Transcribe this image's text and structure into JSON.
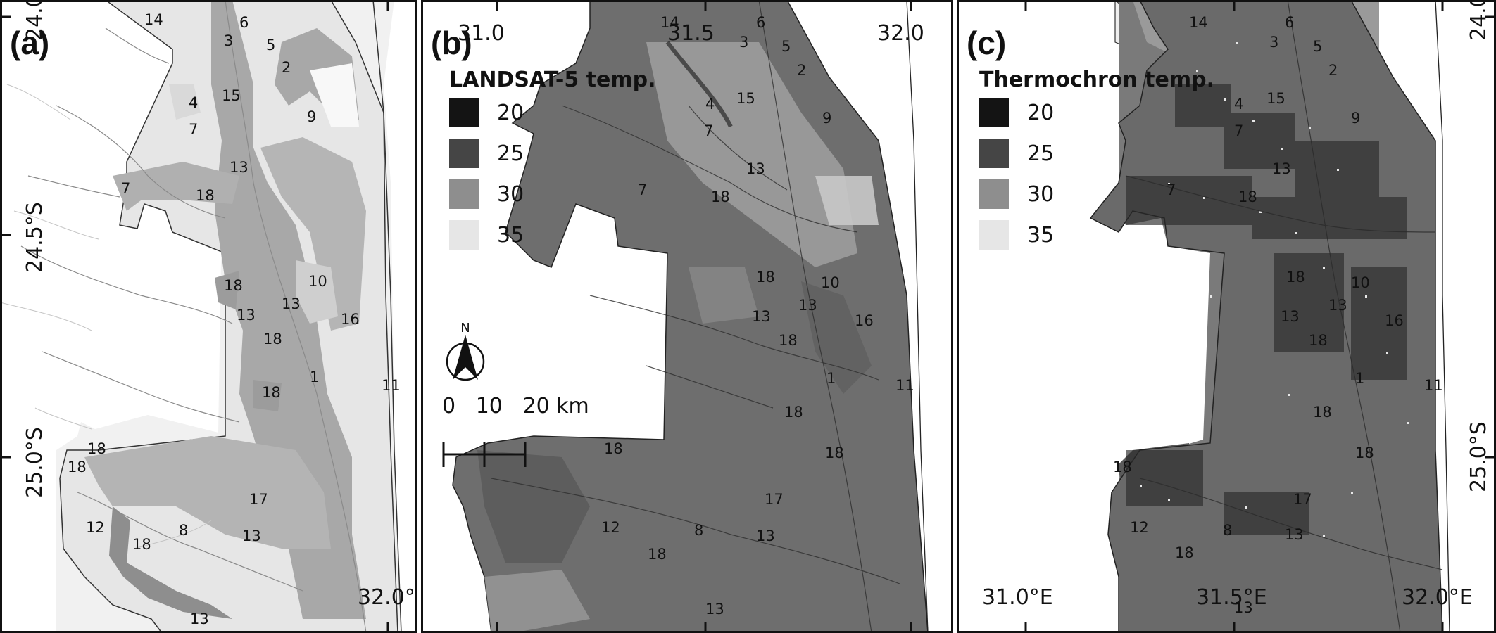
{
  "panels": [
    {
      "label": "(a)",
      "top_ticks": [],
      "bottom_ticks": [
        "32.0°"
      ],
      "side_ticks": [
        "24.0",
        "24.5°S",
        "25.0°S"
      ],
      "zones": [
        "14",
        "3",
        "6",
        "5",
        "2",
        "4",
        "15",
        "7",
        "9",
        "13",
        "7",
        "18",
        "18",
        "10",
        "13",
        "13",
        "16",
        "18",
        "1",
        "18",
        "11",
        "18",
        "18",
        "17",
        "12",
        "8",
        "18",
        "13",
        "13"
      ]
    },
    {
      "label": "(b)",
      "top_ticks": [
        "31.0",
        "31.5",
        "32.0"
      ],
      "bottom_ticks": [],
      "legend": {
        "title": "LANDSAT-5 temp.",
        "items": [
          {
            "value": "20",
            "color": "#141414"
          },
          {
            "value": "25",
            "color": "#454545"
          },
          {
            "value": "30",
            "color": "#8e8e8e"
          },
          {
            "value": "35",
            "color": "#e6e6e6"
          }
        ]
      },
      "north_arrow_label": "N",
      "scale_bar_label": "0   10   20 km",
      "zones": [
        "14",
        "3",
        "6",
        "5",
        "2",
        "4",
        "15",
        "7",
        "9",
        "13",
        "7",
        "18",
        "18",
        "10",
        "13",
        "13",
        "16",
        "18",
        "1",
        "11",
        "18",
        "18",
        "18",
        "17",
        "12",
        "8",
        "18",
        "13",
        "13"
      ]
    },
    {
      "label": "(c)",
      "top_ticks": [],
      "bottom_ticks": [
        "31.0°E",
        "31.5°E",
        "32.0°E"
      ],
      "side_ticks": [
        "24.0",
        "25.0°S"
      ],
      "legend": {
        "title": "Thermochron temp.",
        "items": [
          {
            "value": "20",
            "color": "#141414"
          },
          {
            "value": "25",
            "color": "#454545"
          },
          {
            "value": "30",
            "color": "#8e8e8e"
          },
          {
            "value": "35",
            "color": "#e6e6e6"
          }
        ]
      },
      "zones": [
        "14",
        "3",
        "6",
        "5",
        "2",
        "4",
        "15",
        "7",
        "9",
        "13",
        "7",
        "18",
        "18",
        "10",
        "13",
        "13",
        "16",
        "18",
        "1",
        "11",
        "18",
        "18",
        "18",
        "17",
        "12",
        "8",
        "18",
        "13",
        "13"
      ]
    }
  ]
}
